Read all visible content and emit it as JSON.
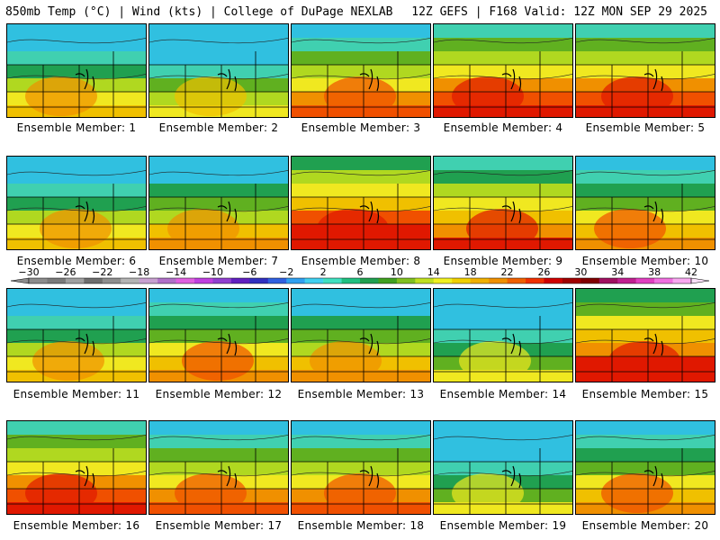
{
  "header": {
    "left": "850mb Temp (°C) | Wind (kts) | College of DuPage NEXLAB",
    "right": "12Z GEFS | F168 Valid: 12Z MON SEP 29 2025"
  },
  "colorbar": {
    "tick_labels": [
      "−30",
      "−26",
      "−22",
      "−18",
      "−14",
      "−10",
      "−6",
      "−2",
      "2",
      "6",
      "10",
      "14",
      "18",
      "22",
      "26",
      "30",
      "34",
      "38",
      "42"
    ],
    "colors": [
      "#8c8c8c",
      "#7a7a7a",
      "#a0a0a0",
      "#6e6e6e",
      "#8e8e8e",
      "#b4b4b4",
      "#c8a0d0",
      "#b070c8",
      "#e060e0",
      "#c040e0",
      "#9040d0",
      "#6020c0",
      "#3030c0",
      "#3060e0",
      "#30a0f0",
      "#40d0f0",
      "#40e0c0",
      "#20c080",
      "#20a050",
      "#40a020",
      "#80c020",
      "#c0e020",
      "#f0f020",
      "#f0d000",
      "#f0b000",
      "#f09000",
      "#f06000",
      "#f03000",
      "#d00000",
      "#a00000",
      "#800000",
      "#a01060",
      "#c02090",
      "#e040c0",
      "#f070e0",
      "#f8a8f0"
    ],
    "range": [
      -30,
      42
    ]
  },
  "members": [
    {
      "label": "Ensemble Member: 1",
      "warmth": 0.45
    },
    {
      "label": "Ensemble Member: 2",
      "warmth": 0.35
    },
    {
      "label": "Ensemble Member: 3",
      "warmth": 0.6
    },
    {
      "label": "Ensemble Member: 4",
      "warmth": 0.75
    },
    {
      "label": "Ensemble Member: 5",
      "warmth": 0.75
    },
    {
      "label": "Ensemble Member: 6",
      "warmth": 0.45
    },
    {
      "label": "Ensemble Member: 7",
      "warmth": 0.5
    },
    {
      "label": "Ensemble Member: 8",
      "warmth": 0.85
    },
    {
      "label": "Ensemble Member: 9",
      "warmth": 0.7
    },
    {
      "label": "Ensemble Member: 10",
      "warmth": 0.55
    },
    {
      "label": "Ensemble Member: 11",
      "warmth": 0.45
    },
    {
      "label": "Ensemble Member: 12",
      "warmth": 0.55
    },
    {
      "label": "Ensemble Member: 13",
      "warmth": 0.5
    },
    {
      "label": "Ensemble Member: 14",
      "warmth": 0.3
    },
    {
      "label": "Ensemble Member: 15",
      "warmth": 0.8
    },
    {
      "label": "Ensemble Member: 16",
      "warmth": 0.75
    },
    {
      "label": "Ensemble Member: 17",
      "warmth": 0.6
    },
    {
      "label": "Ensemble Member: 18",
      "warmth": 0.6
    },
    {
      "label": "Ensemble Member: 19",
      "warmth": 0.3
    },
    {
      "label": "Ensemble Member: 20",
      "warmth": 0.55
    }
  ]
}
